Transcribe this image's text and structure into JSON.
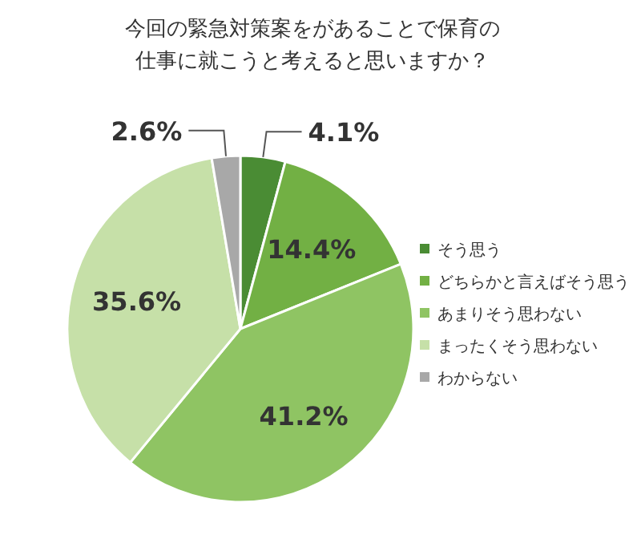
{
  "chart_data": {
    "type": "pie",
    "title": "今回の緊急対策案をがあることで保育の仕事に就こうと考えると思いますか？",
    "categories": [
      "そう思う",
      "どちらかと言えばそう思う",
      "あまりそう思わない",
      "まったくそう思わない",
      "わからない"
    ],
    "values": [
      4.1,
      14.4,
      41.2,
      35.6,
      2.6
    ],
    "colors": [
      "#4a8c34",
      "#72b044",
      "#8fc463",
      "#c6e0a8",
      "#a8a8a8"
    ],
    "value_labels": [
      "4.1%",
      "14.4%",
      "41.2%",
      "35.6%",
      "2.6%"
    ],
    "legend": "right"
  }
}
